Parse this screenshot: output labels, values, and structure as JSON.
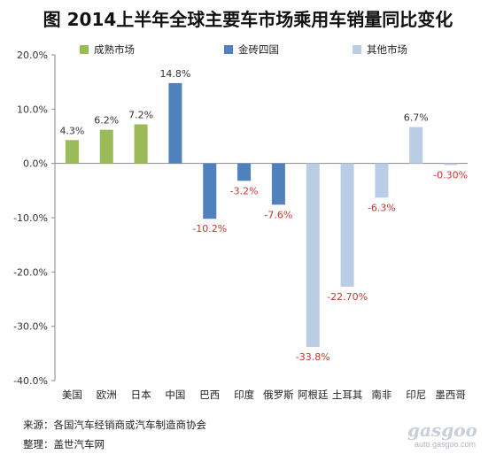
{
  "chart_data": {
    "type": "bar",
    "title": "图  2014上半年全球主要车市场乘用车销量同比变化",
    "categories": [
      "美国",
      "欧洲",
      "日本",
      "中国",
      "巴西",
      "印度",
      "俄罗斯",
      "阿根廷",
      "土耳其",
      "南非",
      "印尼",
      "墨西哥"
    ],
    "values": [
      4.3,
      6.2,
      7.2,
      14.8,
      -10.2,
      -3.2,
      -7.6,
      -33.8,
      -22.7,
      -6.3,
      6.7,
      -0.3
    ],
    "data_labels": [
      "4.3%",
      "6.2%",
      "7.2%",
      "14.8%",
      "-10.2%",
      "-3.2%",
      "-7.6%",
      "-33.8%",
      "-22.70%",
      "-6.3%",
      "6.7%",
      "-0.30%"
    ],
    "groups": [
      "成熟市场",
      "成熟市场",
      "成熟市场",
      "金砖四国",
      "金砖四国",
      "金砖四国",
      "金砖四国",
      "其他市场",
      "其他市场",
      "其他市场",
      "其他市场",
      "其他市场"
    ],
    "legend": [
      {
        "name": "成熟市场",
        "color": "#9bbb59"
      },
      {
        "name": "金砖四国",
        "color": "#4f81bd"
      },
      {
        "name": "其他市场",
        "color": "#b9cde5"
      }
    ],
    "legend_position": "top",
    "ylim": [
      -40,
      20
    ],
    "yticks": [
      20,
      10,
      0,
      -10,
      -20,
      -30,
      -40
    ],
    "ytick_labels": [
      "20.0%",
      "10.0%",
      "0.0%",
      "-10.0%",
      "-20.0%",
      "-30.0%",
      "-40.0%"
    ],
    "xlabel": "",
    "ylabel": "",
    "grid": false,
    "positive_label_color": "#333333",
    "negative_label_color": "#c0392b"
  },
  "footer": {
    "source": "来源：各国汽车经销商或汽车制造商协会",
    "editor": "整理：盖世汽车网"
  },
  "watermark": {
    "logo": "gasgoo",
    "url": "auto.gasgoo.com"
  }
}
